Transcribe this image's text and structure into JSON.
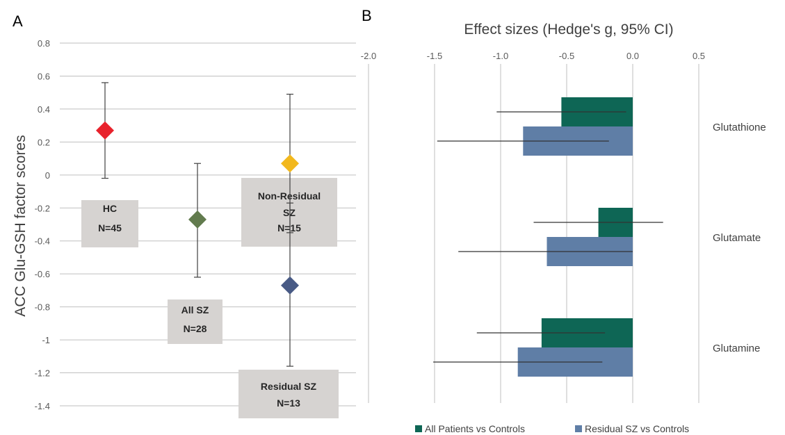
{
  "chart_data": [
    {
      "panel_label": "A",
      "type": "scatter",
      "ylabel": "ACC Glu-GSH factor scores",
      "ylim": [
        -1.4,
        0.8
      ],
      "yticks": [
        "0.8",
        "0.6",
        "0.4",
        "0.2",
        "0",
        "-0.2",
        "-0.4",
        "-0.6",
        "-0.8",
        "-1",
        "-1.2",
        "-1.4"
      ],
      "grid": true,
      "points": [
        {
          "label": "HC",
          "n_label": "N=45",
          "y": 0.27,
          "ci": [
            -0.02,
            0.56
          ],
          "color": "#e8222c"
        },
        {
          "label": "All SZ",
          "n_label": "N=28",
          "y": -0.27,
          "ci": [
            -0.62,
            0.07
          ],
          "color": "#627b4e"
        },
        {
          "label": "Non-Residual SZ",
          "n_label": "N=15",
          "y": 0.07,
          "ci": [
            -0.35,
            0.49
          ],
          "color": "#f2b81d"
        },
        {
          "label": "Residual SZ",
          "n_label": "N=13",
          "y": -0.67,
          "ci": [
            -1.16,
            -0.17
          ],
          "color": "#485a85"
        }
      ]
    },
    {
      "panel_label": "B",
      "type": "bar",
      "orientation": "horizontal",
      "title": "Effect sizes (Hedge's g, 95% CI)",
      "xlim": [
        -2.0,
        0.5
      ],
      "xticks": [
        "-2.0",
        "-1.5",
        "-1.0",
        "-0.5",
        "0.0",
        "0.5"
      ],
      "categories": [
        "Glutathione",
        "Glutamate",
        "Glutamine"
      ],
      "series": [
        {
          "name": "All Patients vs Controls",
          "color": "#0e6655",
          "values": [
            -0.54,
            -0.26,
            -0.69
          ],
          "ci": [
            [
              -1.03,
              -0.05
            ],
            [
              -0.75,
              0.23
            ],
            [
              -1.18,
              -0.21
            ]
          ]
        },
        {
          "name": "Residual SZ vs Controls",
          "color": "#5f7ea6",
          "values": [
            -0.83,
            -0.65,
            -0.87
          ],
          "ci": [
            [
              -1.48,
              -0.18
            ],
            [
              -1.32,
              0.0
            ],
            [
              -1.51,
              -0.23
            ]
          ]
        }
      ],
      "legend_position": "bottom"
    }
  ]
}
